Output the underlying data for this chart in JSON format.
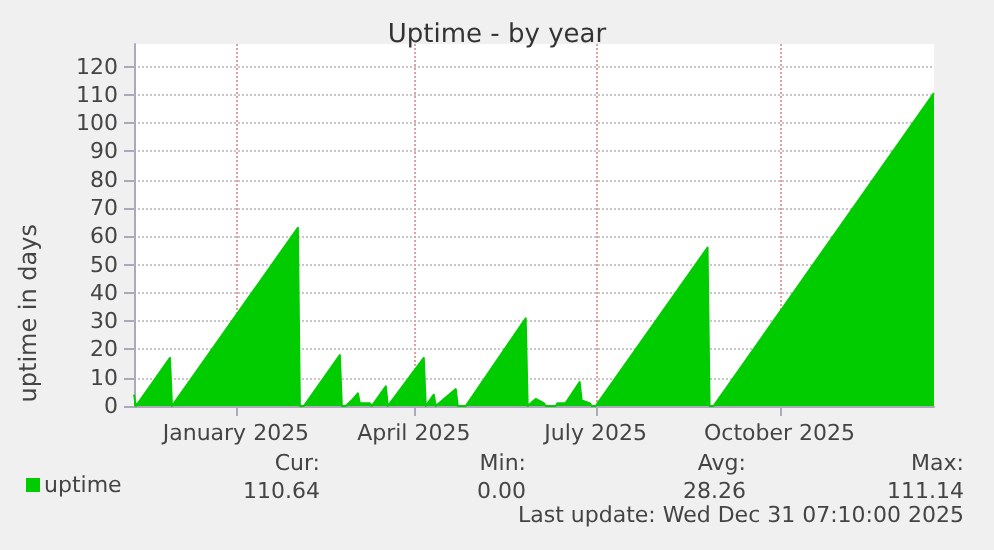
{
  "chart_data": {
    "type": "area",
    "title": "Uptime - by year",
    "ylabel": "uptime in days",
    "x": [
      "2024-11-26",
      "2024-11-27",
      "2024-12-14",
      "2024-12-15",
      "2025-02-16",
      "2025-02-17",
      "2025-02-19",
      "2025-03-09",
      "2025-03-10",
      "2025-03-12",
      "2025-03-15",
      "2025-03-18",
      "2025-03-19",
      "2025-03-24",
      "2025-03-25",
      "2025-04-01",
      "2025-04-02",
      "2025-04-20",
      "2025-04-21",
      "2025-04-25",
      "2025-04-26",
      "2025-05-06",
      "2025-05-07",
      "2025-05-11",
      "2025-06-10",
      "2025-06-11",
      "2025-06-15",
      "2025-06-19",
      "2025-06-20",
      "2025-06-25",
      "2025-06-26",
      "2025-06-30",
      "2025-07-07",
      "2025-07-08",
      "2025-07-12",
      "2025-07-13",
      "2025-07-15",
      "2025-09-09",
      "2025-09-10",
      "2025-09-12",
      "2025-12-31T07:00"
    ],
    "series": [
      {
        "name": "uptime",
        "color": "#00cc00",
        "values": [
          4,
          0,
          17,
          0,
          63,
          0,
          0,
          18,
          0,
          0,
          2,
          4.5,
          1,
          1,
          0,
          7,
          0,
          17,
          0,
          4,
          0,
          6,
          0,
          0,
          31,
          0,
          2.5,
          1,
          0,
          0,
          1,
          1,
          8.5,
          2,
          1,
          0,
          0,
          56,
          0,
          0,
          110.64
        ]
      }
    ],
    "xlim": [
      "2024-11-26",
      "2025-12-31T07:10"
    ],
    "xticks": [
      {
        "value": "2025-01-16",
        "label": "January 2025"
      },
      {
        "value": "2025-04-15",
        "label": "April 2025"
      },
      {
        "value": "2025-07-15",
        "label": "July 2025"
      },
      {
        "value": "2025-10-15",
        "label": "October 2025"
      }
    ],
    "ylim": [
      0,
      128
    ],
    "yticks": [
      0,
      10,
      20,
      30,
      40,
      50,
      60,
      70,
      80,
      90,
      100,
      110,
      120
    ],
    "grid": true,
    "legend": "bottom left",
    "marker": "none",
    "annotations": [
      "Cur:",
      "110.64",
      "Min:",
      "0.00",
      "Avg:",
      "28.26",
      "Max:",
      "111.14",
      "Last update: Wed Dec 31 07:10:00 2025"
    ]
  }
}
